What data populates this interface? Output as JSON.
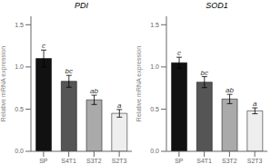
{
  "chart_data": [
    {
      "type": "bar",
      "title": "PDI",
      "categories": [
        "SP",
        "S4T1",
        "S3T2",
        "S2T3"
      ],
      "values": [
        1.1,
        0.83,
        0.61,
        0.45
      ],
      "errors": [
        0.1,
        0.07,
        0.055,
        0.045
      ],
      "annotations": [
        "c",
        "bc",
        "ab",
        "a"
      ],
      "colors": [
        "#111111",
        "#555555",
        "#aaaaaa",
        "#eeeeee"
      ],
      "ylabel": "Relative mRNA expression",
      "ylim": [
        0,
        1.6
      ],
      "yticks": [
        {
          "value": 0.0,
          "label": "0.0"
        },
        0.5,
        {
          "value": 1.0,
          "label": "1.0"
        },
        1.5
      ]
    },
    {
      "type": "bar",
      "title": "SOD1",
      "categories": [
        "SP",
        "S4T1",
        "S3T2",
        "S2T3"
      ],
      "values": [
        1.05,
        0.82,
        0.62,
        0.48
      ],
      "errors": [
        0.065,
        0.065,
        0.055,
        0.035
      ],
      "annotations": [
        "c",
        "bc",
        "ab",
        "a"
      ],
      "colors": [
        "#111111",
        "#555555",
        "#aaaaaa",
        "#eeeeee"
      ],
      "ylabel": "Relative mRNA expression",
      "ylim": [
        0,
        1.6
      ],
      "yticks": [
        {
          "value": 0.0,
          "label": "0.0"
        },
        0.5,
        {
          "value": 1.0,
          "label": "1.0"
        },
        1.5
      ]
    }
  ]
}
